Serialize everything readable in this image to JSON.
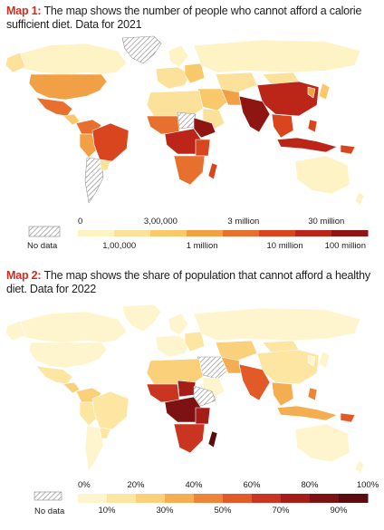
{
  "map1": {
    "caption_label": "Map 1:",
    "caption_text": " The map shows the number of people who cannot afford a calorie sufficient diet. Data for 2021",
    "nodata_label": "No data",
    "top_ticks": [
      "0",
      "3,00,000",
      "3 million",
      "30 million"
    ],
    "bottom_ticks": [
      "1,00,000",
      "1 million",
      "10 million",
      "100 million"
    ],
    "colors": [
      "#fef3c4",
      "#fbe199",
      "#f8c86a",
      "#f2a046",
      "#e8702e",
      "#d8451f",
      "#bb2619",
      "#8f1512"
    ]
  },
  "map2": {
    "caption_label": "Map 2:",
    "caption_text": " The map shows the share of population that cannot afford a healthy diet. Data for 2022",
    "nodata_label": "No data",
    "top_ticks": [
      "0%",
      "20%",
      "40%",
      "60%",
      "80%",
      "100%"
    ],
    "bottom_ticks": [
      "10%",
      "30%",
      "50%",
      "70%",
      "90%"
    ],
    "colors": [
      "#fef5cf",
      "#fde6a2",
      "#fbd07a",
      "#f5ad52",
      "#ee8438",
      "#e15a27",
      "#c93520",
      "#a61d18",
      "#7e1213",
      "#5a0c0e"
    ]
  }
}
